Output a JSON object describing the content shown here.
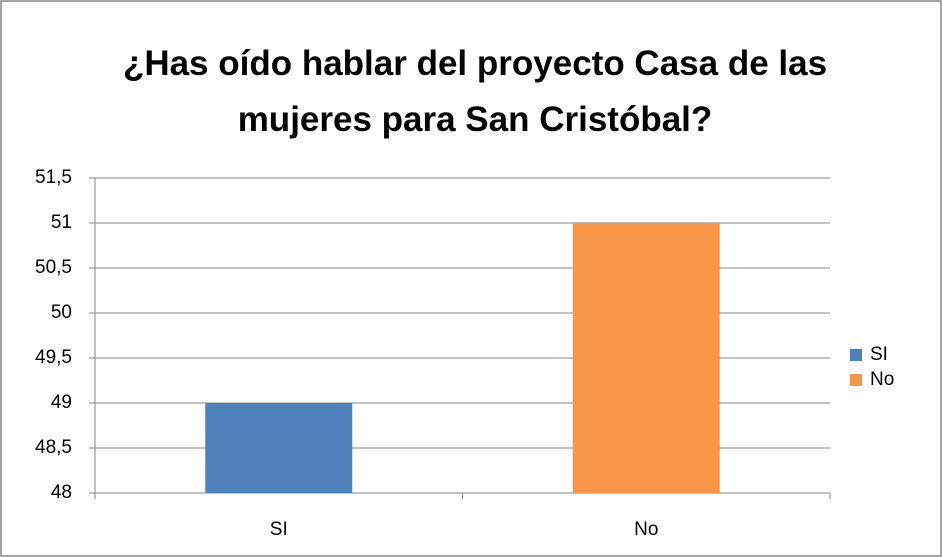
{
  "chart_data": {
    "type": "bar",
    "title": "¿Has oído hablar del proyecto Casa de las mujeres para San Cristóbal?",
    "categories": [
      "SI",
      "No"
    ],
    "values": [
      49,
      51
    ],
    "colors": [
      "#4f81bd",
      "#f79646"
    ],
    "ylim": [
      48,
      51.5
    ],
    "yticks": [
      48,
      {
        "value": 48.5,
        "label": "48,5"
      },
      49,
      {
        "value": 49.5,
        "label": "49,5"
      },
      50,
      {
        "value": 50.5,
        "label": "50,5"
      },
      51,
      {
        "value": 51.5,
        "label": "51,5"
      }
    ],
    "grid": true,
    "legend": "right"
  }
}
